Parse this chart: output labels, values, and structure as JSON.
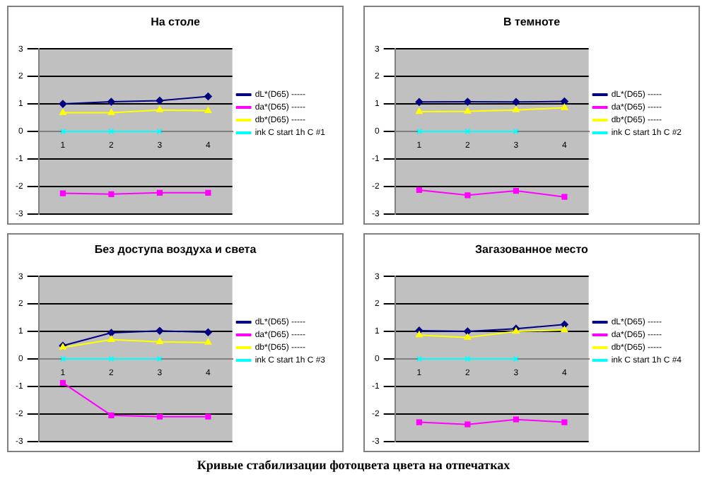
{
  "chart_data": [
    {
      "type": "line",
      "title": "На столе",
      "categories": [
        "1",
        "2",
        "3",
        "4"
      ],
      "ylim": [
        -3,
        3
      ],
      "yticks": [
        -3,
        -2,
        -1,
        0,
        1,
        2,
        3
      ],
      "grid": "y",
      "legend": "right",
      "annotations": [
        "Кривые стабилизации фотоцвета цвета на отпечатках"
      ],
      "series": [
        {
          "name": "dL*(D65) -----",
          "color": "#000080",
          "marker": "diamond",
          "values": [
            1.0,
            1.08,
            1.12,
            1.27
          ]
        },
        {
          "name": "da*(D65) -----",
          "color": "#ff00ff",
          "marker": "square",
          "values": [
            -2.25,
            -2.28,
            -2.23,
            -2.23
          ]
        },
        {
          "name": "db*(D65) -----",
          "color": "#ffff00",
          "marker": "triangle",
          "values": [
            0.68,
            0.68,
            0.78,
            0.75
          ]
        },
        {
          "name": "ink C start 1h C #1",
          "color": "#00ffff",
          "marker": "cross",
          "values": [
            0,
            0,
            0,
            null
          ]
        }
      ]
    },
    {
      "type": "line",
      "title": "В темноте",
      "categories": [
        "1",
        "2",
        "3",
        "4"
      ],
      "ylim": [
        -3,
        3
      ],
      "yticks": [
        -3,
        -2,
        -1,
        0,
        1,
        2,
        3
      ],
      "grid": "y",
      "legend": "right",
      "series": [
        {
          "name": "dL*(D65) -----",
          "color": "#000080",
          "marker": "diamond",
          "values": [
            1.07,
            1.08,
            1.07,
            1.09
          ]
        },
        {
          "name": "da*(D65) -----",
          "color": "#ff00ff",
          "marker": "square",
          "values": [
            -2.13,
            -2.32,
            -2.16,
            -2.38
          ]
        },
        {
          "name": "db*(D65) -----",
          "color": "#ffff00",
          "marker": "triangle",
          "values": [
            0.72,
            0.73,
            0.78,
            0.86
          ]
        },
        {
          "name": "ink C start 1h C #2",
          "color": "#00ffff",
          "marker": "cross",
          "values": [
            0,
            0,
            0,
            null
          ]
        }
      ]
    },
    {
      "type": "line",
      "title": "Без доступа воздуха и света",
      "categories": [
        "1",
        "2",
        "3",
        "4"
      ],
      "ylim": [
        -3,
        3
      ],
      "yticks": [
        -3,
        -2,
        -1,
        0,
        1,
        2,
        3
      ],
      "grid": "y",
      "legend": "right",
      "series": [
        {
          "name": "dL*(D65) -----",
          "color": "#000080",
          "marker": "diamond",
          "values": [
            0.48,
            0.95,
            1.02,
            0.97
          ]
        },
        {
          "name": "da*(D65) -----",
          "color": "#ff00ff",
          "marker": "square",
          "values": [
            -0.87,
            -2.05,
            -2.1,
            -2.1
          ]
        },
        {
          "name": "db*(D65) -----",
          "color": "#ffff00",
          "marker": "triangle",
          "values": [
            0.42,
            0.7,
            0.62,
            0.6
          ]
        },
        {
          "name": "ink C start 1h C #3",
          "color": "#00ffff",
          "marker": "cross",
          "values": [
            0,
            0,
            0,
            null
          ]
        }
      ]
    },
    {
      "type": "line",
      "title": "Загазованное место",
      "categories": [
        "1",
        "2",
        "3",
        "4"
      ],
      "ylim": [
        -3,
        3
      ],
      "yticks": [
        -3,
        -2,
        -1,
        0,
        1,
        2,
        3
      ],
      "grid": "y",
      "legend": "right",
      "series": [
        {
          "name": "dL*(D65) -----",
          "color": "#000080",
          "marker": "diamond",
          "values": [
            1.03,
            1.0,
            1.1,
            1.25
          ]
        },
        {
          "name": "da*(D65) -----",
          "color": "#ff00ff",
          "marker": "square",
          "values": [
            -2.3,
            -2.38,
            -2.2,
            -2.3
          ]
        },
        {
          "name": "db*(D65) -----",
          "color": "#ffff00",
          "marker": "triangle",
          "values": [
            0.87,
            0.78,
            1.0,
            1.05
          ]
        },
        {
          "name": "ink C start 1h C #4",
          "color": "#00ffff",
          "marker": "cross",
          "values": [
            0,
            0,
            0,
            null
          ]
        }
      ]
    }
  ]
}
